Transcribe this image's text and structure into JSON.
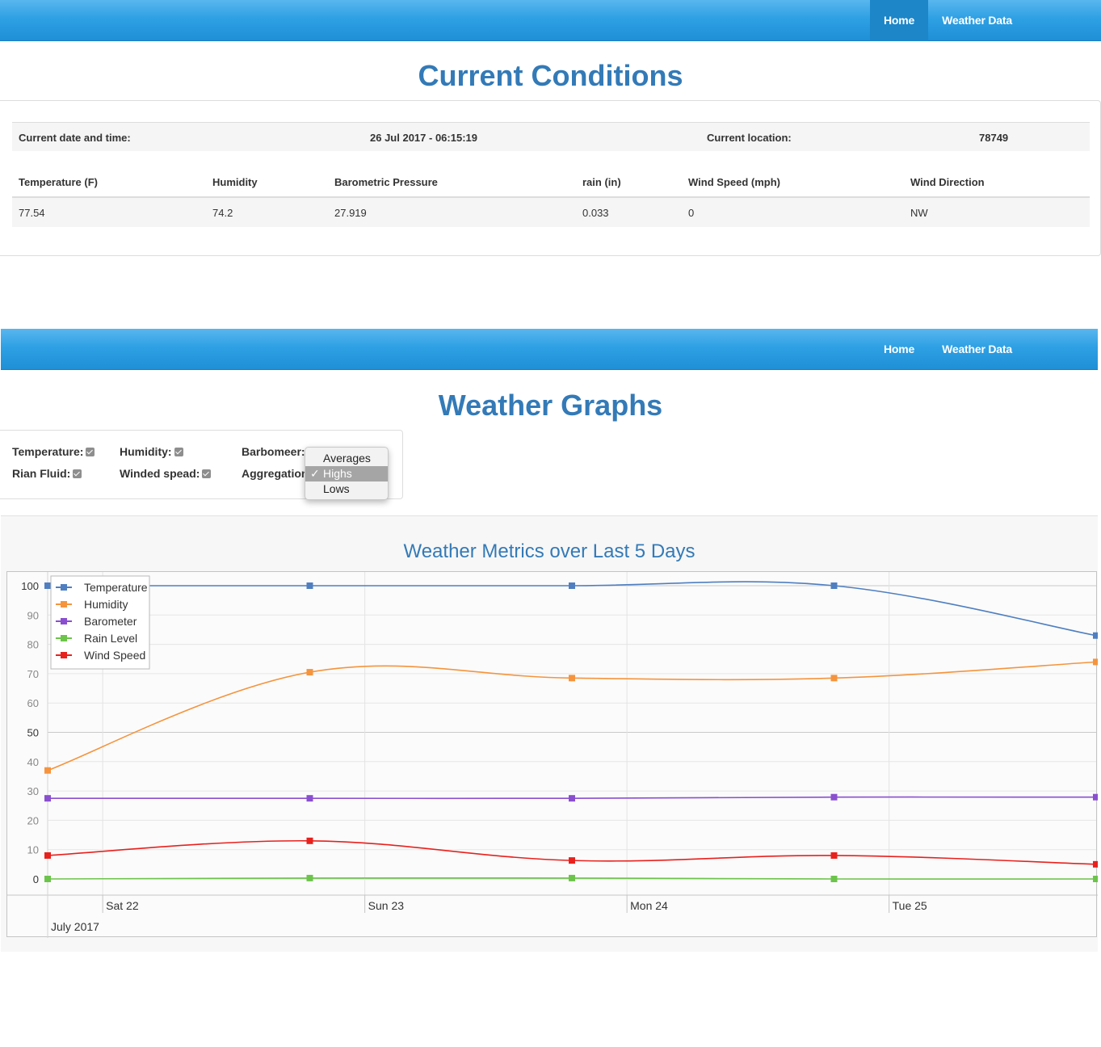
{
  "nav": {
    "home_label": "Home",
    "weather_data_label": "Weather Data"
  },
  "current": {
    "title": "Current Conditions",
    "date_label": "Current date and time:",
    "date_value": "26 Jul 2017 - 06:15:19",
    "location_label": "Current location:",
    "location_value": "78749",
    "headers": {
      "temperature": "Temperature (F)",
      "humidity": "Humidity",
      "pressure": "Barometric Pressure",
      "rain": "rain (in)",
      "wind_speed": "Wind Speed (mph)",
      "wind_direction": "Wind Direction"
    },
    "values": {
      "temperature": "77.54",
      "humidity": "74.2",
      "pressure": "27.919",
      "rain": "0.033",
      "wind_speed": "0",
      "wind_direction": "NW"
    }
  },
  "graphs": {
    "title": "Weather Graphs",
    "controls": {
      "temperature": "Temperature:",
      "humidity": "Humidity:",
      "barometer": "Barbomeer:",
      "rain": "Rian Fluid:",
      "wind": "Winded spead:",
      "aggregation": "Aggregation",
      "options": [
        "Averages",
        "Highs",
        "Lows"
      ],
      "selected": "Highs",
      "check_mark": "✓"
    }
  },
  "chart_data": {
    "type": "line",
    "title": "Weather Metrics over Last 5 Days",
    "xlabel": "",
    "ylabel": "",
    "ylim": [
      0,
      100
    ],
    "y_ticks": [
      "0",
      "10",
      "20",
      "30",
      "40",
      "50",
      "60",
      "70",
      "80",
      "90",
      "100"
    ],
    "x_tick_labels": [
      "Sat 22",
      "Sun 23",
      "Mon 24",
      "Tue 25"
    ],
    "x_sub_label": "July 2017",
    "x_range": [
      0,
      4
    ],
    "x": [
      0,
      1,
      2,
      3,
      4
    ],
    "legend_position": "top-left",
    "series": [
      {
        "name": "Temperature",
        "color": "#4f7fc0",
        "values": [
          100,
          100,
          100,
          100,
          83
        ]
      },
      {
        "name": "Humidity",
        "color": "#f5943d",
        "values": [
          37,
          70.5,
          68.5,
          68.5,
          74
        ]
      },
      {
        "name": "Barometer",
        "color": "#8a4fcf",
        "values": [
          27.5,
          27.5,
          27.5,
          27.9,
          27.9
        ]
      },
      {
        "name": "Rain Level",
        "color": "#6cc44a",
        "values": [
          0,
          0.3,
          0.3,
          0,
          0
        ]
      },
      {
        "name": "Wind Speed",
        "color": "#e8211d",
        "values": [
          8,
          13,
          6.3,
          8,
          5
        ]
      }
    ]
  }
}
